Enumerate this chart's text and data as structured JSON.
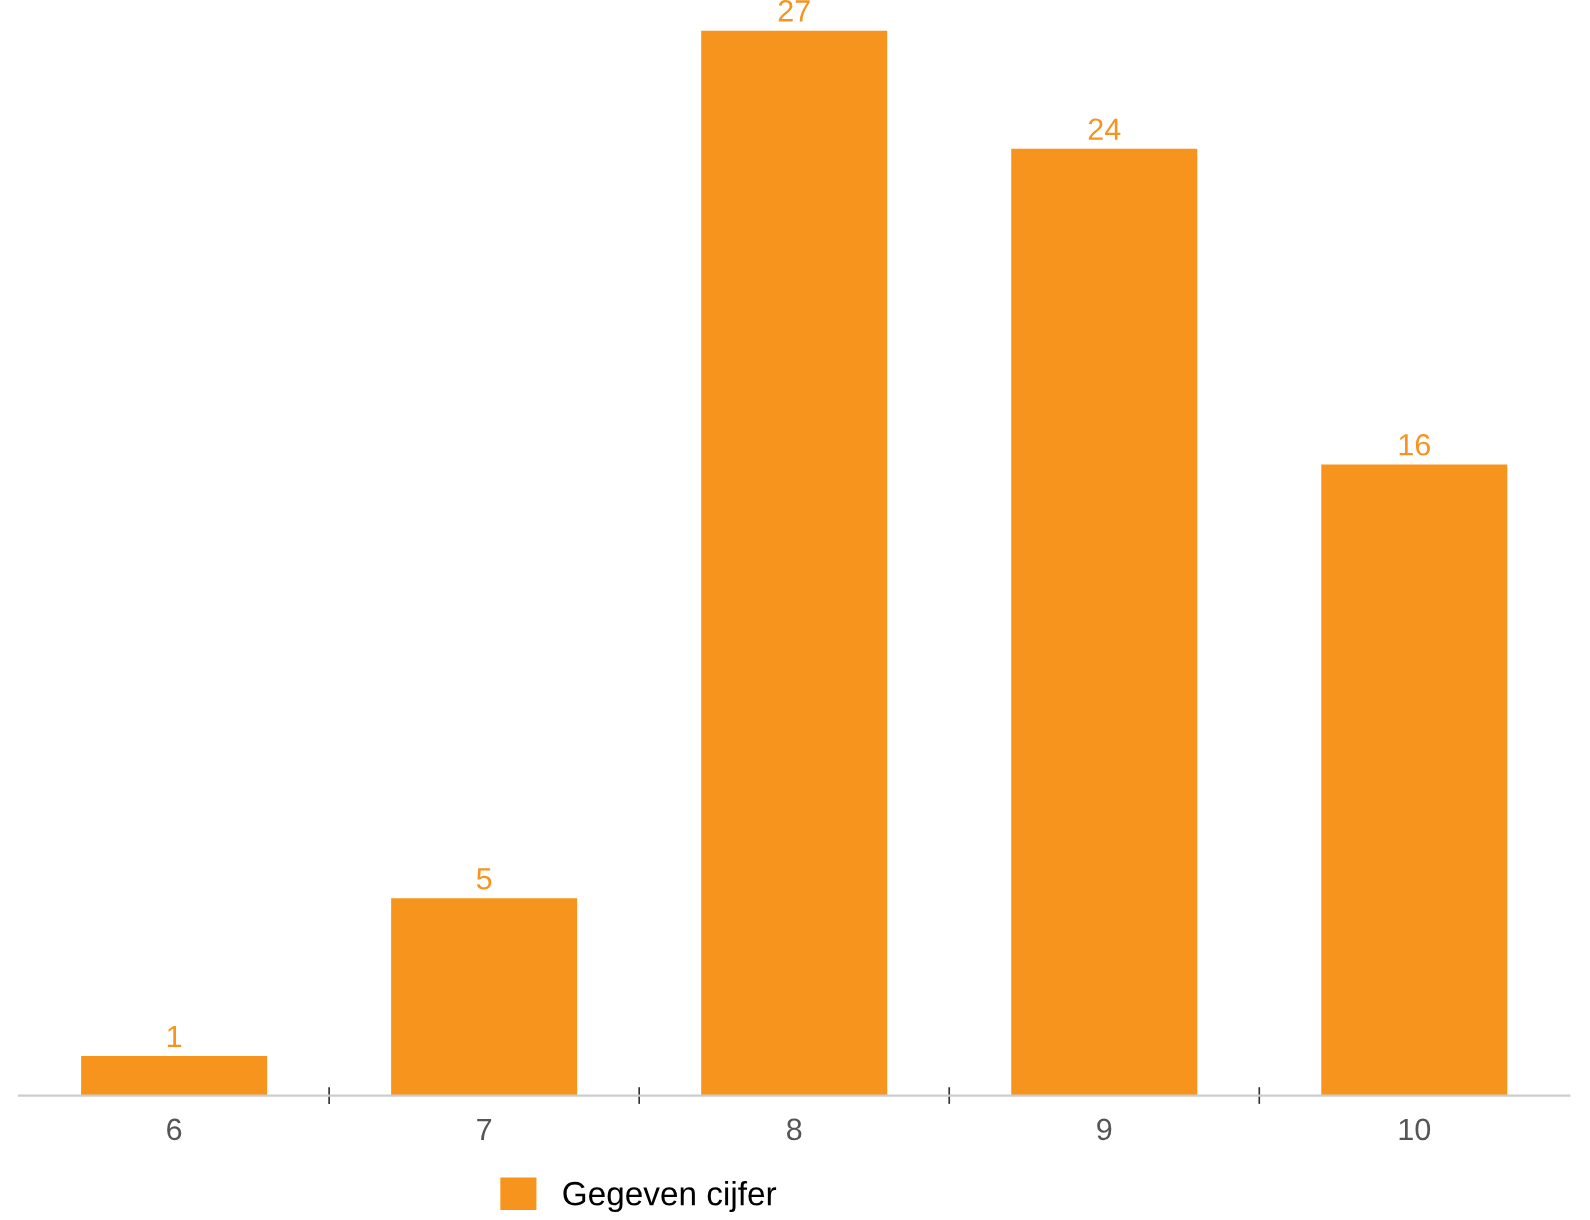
{
  "chart_data": {
    "type": "bar",
    "categories": [
      "6",
      "7",
      "8",
      "9",
      "10"
    ],
    "series": [
      {
        "name": "Gegeven cijfer",
        "color": "#f7941d",
        "values": [
          1,
          5,
          27,
          24,
          16
        ]
      }
    ],
    "data_labels": true,
    "legend": "bottom",
    "grid": false
  }
}
